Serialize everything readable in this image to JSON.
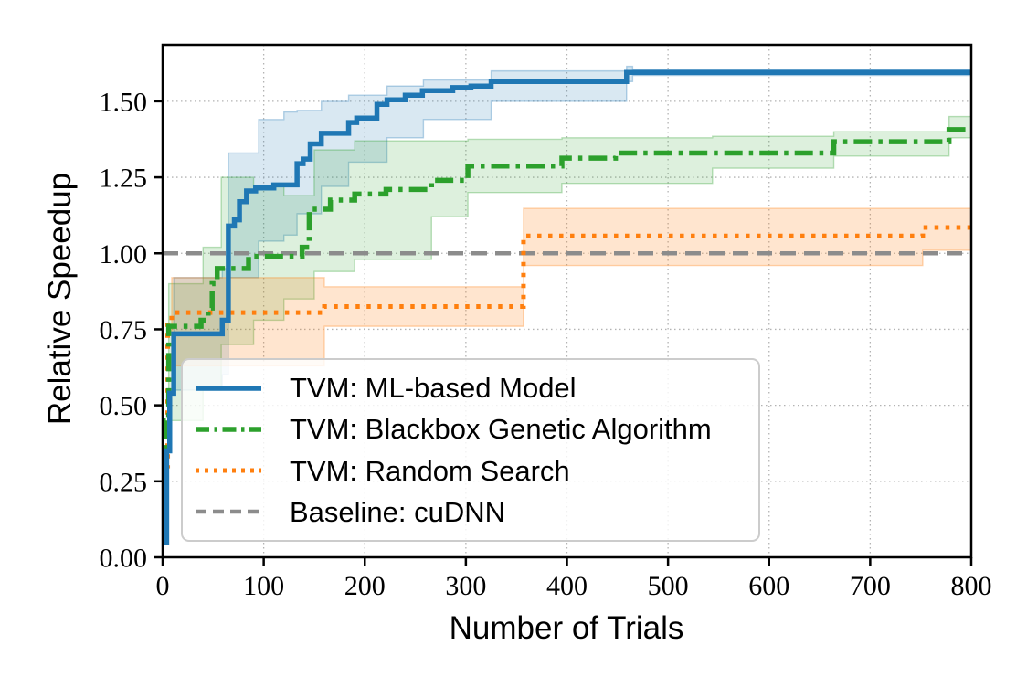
{
  "figure": {
    "background": "#ffffff",
    "title": ""
  },
  "chart_data": {
    "type": "line",
    "subtype": "step-post with confidence bands",
    "title": "",
    "xlabel": "Number of Trials",
    "ylabel": "Relative Speedup",
    "xlim": [
      0,
      800
    ],
    "ylim": [
      0,
      1.686
    ],
    "grid": true,
    "grid_style": "dotted",
    "grid_color": "#b3b3b3",
    "legend_position": "lower left",
    "x_ticks": [
      {
        "value": 0,
        "label": "0"
      },
      {
        "value": 100,
        "label": "100"
      },
      {
        "value": 200,
        "label": "200"
      },
      {
        "value": 300,
        "label": "300"
      },
      {
        "value": 400,
        "label": "400"
      },
      {
        "value": 500,
        "label": "500"
      },
      {
        "value": 600,
        "label": "600"
      },
      {
        "value": 700,
        "label": "700"
      },
      {
        "value": 800,
        "label": "800"
      }
    ],
    "y_ticks": [
      {
        "value": 0.0,
        "label": "0.00"
      },
      {
        "value": 0.25,
        "label": "0.25"
      },
      {
        "value": 0.5,
        "label": "0.50"
      },
      {
        "value": 0.75,
        "label": "0.75"
      },
      {
        "value": 1.0,
        "label": "1.00"
      },
      {
        "value": 1.25,
        "label": "1.25"
      },
      {
        "value": 1.5,
        "label": "1.50"
      }
    ],
    "series": [
      {
        "key": "ml_model",
        "name": "TVM: ML-based Model",
        "color": "#1f77b4",
        "linestyle": "solid",
        "width": 5.5,
        "step_points": [
          [
            1,
            0.05
          ],
          [
            4,
            0.35
          ],
          [
            7,
            0.54
          ],
          [
            11,
            0.735
          ],
          [
            59,
            0.78
          ],
          [
            65,
            1.09
          ],
          [
            71,
            1.11
          ],
          [
            76,
            1.17
          ],
          [
            83,
            1.205
          ],
          [
            92,
            1.215
          ],
          [
            110,
            1.225
          ],
          [
            133,
            1.295
          ],
          [
            139,
            1.31
          ],
          [
            146,
            1.36
          ],
          [
            157,
            1.395
          ],
          [
            184,
            1.43
          ],
          [
            192,
            1.445
          ],
          [
            212,
            1.49
          ],
          [
            222,
            1.505
          ],
          [
            240,
            1.52
          ],
          [
            257,
            1.535
          ],
          [
            287,
            1.545
          ],
          [
            305,
            1.55
          ],
          [
            325,
            1.565
          ],
          [
            459,
            1.595
          ],
          [
            800,
            1.595
          ]
        ],
        "band": {
          "opacity": 0.17,
          "points": [
            [
              11,
              0.55,
              0.92
            ],
            [
              59,
              0.6,
              0.95
            ],
            [
              65,
              0.92,
              1.33
            ],
            [
              95,
              1.04,
              1.44
            ],
            [
              120,
              1.06,
              1.465
            ],
            [
              133,
              1.13,
              1.47
            ],
            [
              157,
              1.22,
              1.5
            ],
            [
              184,
              1.3,
              1.52
            ],
            [
              222,
              1.38,
              1.55
            ],
            [
              258,
              1.44,
              1.57
            ],
            [
              325,
              1.5,
              1.6
            ],
            [
              459,
              1.565,
              1.615
            ],
            [
              465,
              1.585,
              1.605
            ],
            [
              800,
              1.585,
              1.605
            ]
          ]
        }
      },
      {
        "key": "genetic",
        "name": "TVM: Blackbox Genetic Algorithm",
        "color": "#2ca02c",
        "linestyle": "dashdot",
        "width": 5.5,
        "step_points": [
          [
            1,
            0.05
          ],
          [
            3,
            0.45
          ],
          [
            6,
            0.76
          ],
          [
            38,
            0.78
          ],
          [
            45,
            0.82
          ],
          [
            49,
            0.9
          ],
          [
            54,
            0.95
          ],
          [
            85,
            0.99
          ],
          [
            138,
            1.02
          ],
          [
            145,
            1.145
          ],
          [
            166,
            1.175
          ],
          [
            190,
            1.195
          ],
          [
            221,
            1.21
          ],
          [
            266,
            1.24
          ],
          [
            302,
            1.287
          ],
          [
            395,
            1.313
          ],
          [
            448,
            1.33
          ],
          [
            664,
            1.367
          ],
          [
            778,
            1.407
          ],
          [
            800,
            1.407
          ]
        ],
        "band": {
          "opacity": 0.16,
          "points": [
            [
              6,
              0.45,
              0.9
            ],
            [
              40,
              0.55,
              1.02
            ],
            [
              58,
              0.7,
              1.25
            ],
            [
              90,
              0.78,
              1.22
            ],
            [
              120,
              0.85,
              1.19
            ],
            [
              150,
              0.94,
              1.34
            ],
            [
              190,
              0.98,
              1.37
            ],
            [
              266,
              1.12,
              1.37
            ],
            [
              302,
              1.2,
              1.375
            ],
            [
              395,
              1.23,
              1.38
            ],
            [
              544,
              1.28,
              1.385
            ],
            [
              664,
              1.32,
              1.4
            ],
            [
              778,
              1.38,
              1.45
            ],
            [
              800,
              1.38,
              1.45
            ]
          ]
        }
      },
      {
        "key": "random_search",
        "name": "TVM: Random Search",
        "color": "#ff7f0e",
        "linestyle": "dotted",
        "width": 5,
        "step_points": [
          [
            1,
            0.05
          ],
          [
            3,
            0.3
          ],
          [
            5,
            0.78
          ],
          [
            9,
            0.805
          ],
          [
            160,
            0.825
          ],
          [
            357,
            1.057
          ],
          [
            752,
            1.085
          ],
          [
            800,
            1.085
          ]
        ],
        "band": {
          "opacity": 0.2,
          "points": [
            [
              9,
              0.63,
              0.92
            ],
            [
              160,
              0.76,
              0.89
            ],
            [
              357,
              0.96,
              1.148
            ],
            [
              752,
              1.01,
              1.148
            ],
            [
              800,
              1.01,
              1.148
            ]
          ]
        }
      },
      {
        "key": "baseline",
        "name": "Baseline: cuDNN",
        "color": "#8c8c8c",
        "linestyle": "dashed",
        "width": 4.5,
        "step_points": [
          [
            0,
            1.0
          ],
          [
            800,
            1.0
          ]
        ],
        "band": null
      }
    ]
  }
}
